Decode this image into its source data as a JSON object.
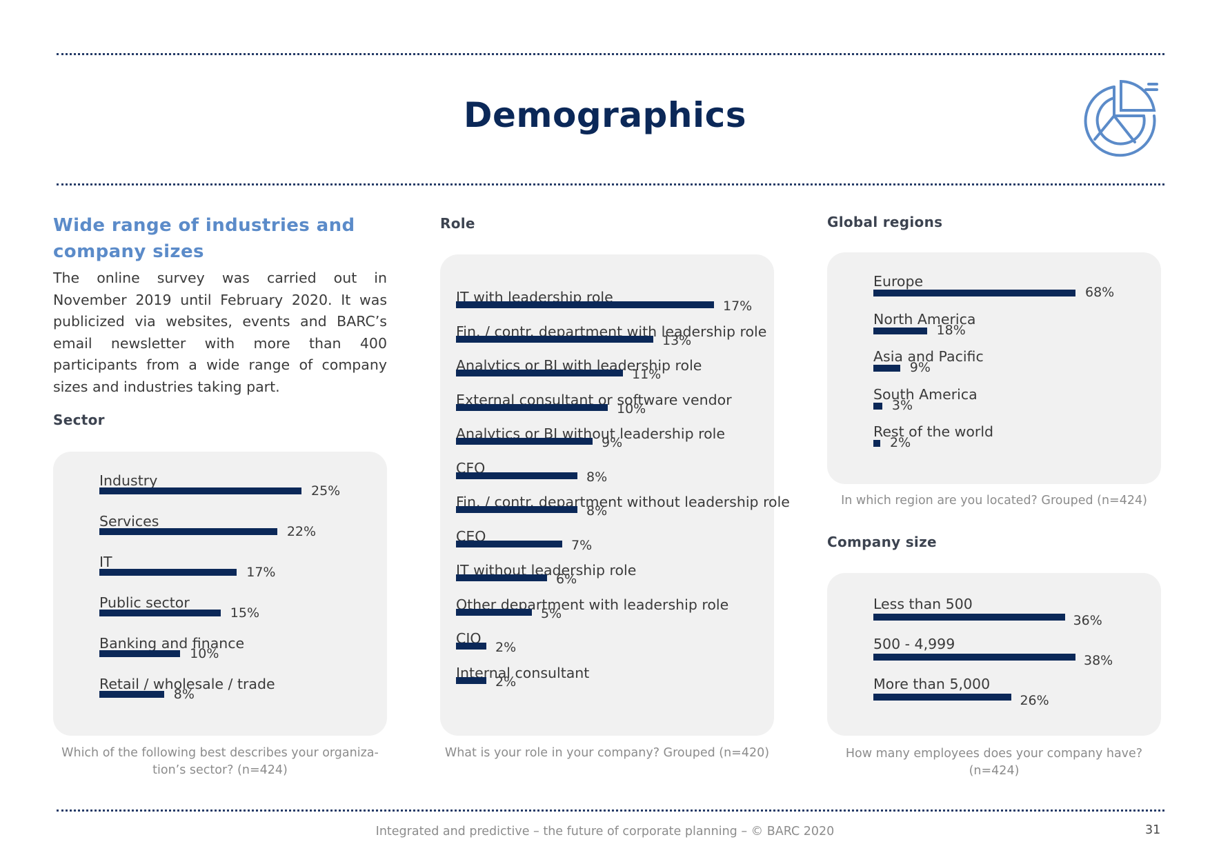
{
  "page": {
    "title": "Demographics",
    "intro_heading": "Wide range of industries and company sizes",
    "intro_text": "The online survey was carried out in November 2019 until February 2020. It was publicized via websites, events and BARC’s email newsletter with more than 400 participants from a wide range of company sizes and industries taking part.",
    "footer": "Integrated and predictive – the future of corporate planning  – © BARC 2020",
    "page_number": "31",
    "logo_icon": "pie-chart-icon"
  },
  "colors": {
    "bar": "#0b2858",
    "accent": "#5b8bc9",
    "title": "#0b2858",
    "panel": "#f1f1f1"
  },
  "chart_data": [
    {
      "id": "sector",
      "type": "bar",
      "orientation": "horizontal",
      "title": "Sector",
      "question": "Which of the following best describes your organiza-tion’s sector? (n=424)",
      "question_lines": [
        "Which of the following best describes your organiza-",
        "tion’s sector? (n=424)"
      ],
      "categories": [
        "Industry",
        "Services",
        "IT",
        "Public sector",
        "Banking and finance",
        "Retail / wholesale / trade"
      ],
      "values": [
        25,
        22,
        17,
        15,
        10,
        8
      ],
      "labels": [
        "25%",
        "22%",
        "17%",
        "15%",
        "10%",
        "8%"
      ],
      "unit": "%",
      "xlim": [
        0,
        25
      ]
    },
    {
      "id": "role",
      "type": "bar",
      "orientation": "horizontal",
      "title": "Role",
      "question": "What is your role in your company? Grouped (n=420)",
      "categories": [
        "IT with leadership role",
        "Fin. / contr. department with leadership role",
        "Analytics or BI with leadership role",
        "External consultant or software vendor",
        "Analytics or BI without leadership role",
        "CFO",
        "Fin. / contr. department without leadership role",
        "CEO",
        "IT without leadership role",
        "Other department with leadership role",
        "CIO",
        "Internal consultant"
      ],
      "values": [
        17,
        13,
        11,
        10,
        9,
        8,
        8,
        7,
        6,
        5,
        2,
        2
      ],
      "labels": [
        "17%",
        "13%",
        "11%",
        "10%",
        "9%",
        "8%",
        "8%",
        "7%",
        "6%",
        "5%",
        "2%",
        "2%"
      ],
      "unit": "%",
      "xlim": [
        0,
        17
      ]
    },
    {
      "id": "regions",
      "type": "bar",
      "orientation": "horizontal",
      "title": "Global regions",
      "question": "In which region are you located? Grouped (n=424)",
      "categories": [
        "Europe",
        "North America",
        "Asia and Pacific",
        "South America",
        "Rest of the world"
      ],
      "values": [
        68,
        18,
        9,
        3,
        2
      ],
      "labels": [
        "68%",
        "18%",
        "9%",
        "3%",
        "2%"
      ],
      "unit": "%",
      "xlim": [
        0,
        68
      ]
    },
    {
      "id": "size",
      "type": "bar",
      "orientation": "horizontal",
      "title": "Company size",
      "question": "How many employees does your company have? (n=424)",
      "question_lines": [
        "How many employees does your company have?",
        "(n=424)"
      ],
      "categories": [
        "Less than 500",
        "500 - 4,999",
        "More than 5,000"
      ],
      "values": [
        36,
        38,
        26
      ],
      "labels": [
        "36%",
        "38%",
        "26%"
      ],
      "unit": "%",
      "xlim": [
        0,
        38
      ]
    }
  ]
}
